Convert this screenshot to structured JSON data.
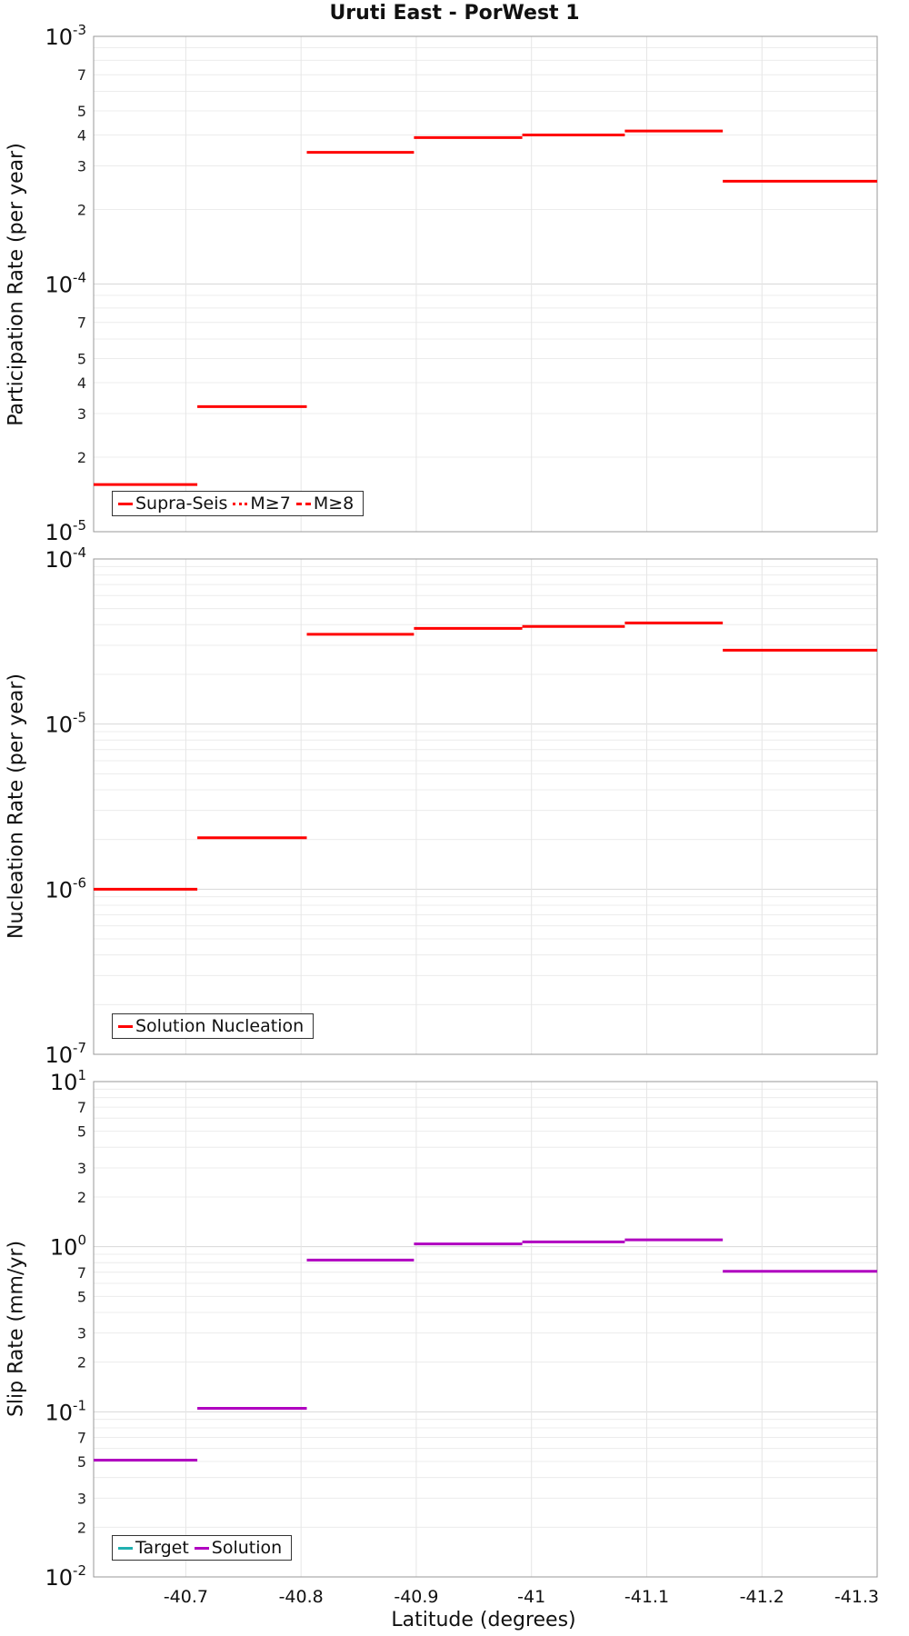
{
  "figure_title": "Uruti East - PorWest 1",
  "xlabel": "Latitude (degrees)",
  "x_ticks": [
    "-40.7",
    "-40.8",
    "-40.9",
    "-41",
    "-41.1",
    "-41.2",
    "-41.3"
  ],
  "x_tick_values": [
    -40.7,
    -40.8,
    -40.9,
    -41.0,
    -41.1,
    -41.2,
    -41.3
  ],
  "colors": {
    "red": "#ff0000",
    "magenta": "#b000c0",
    "teal": "#20b0b0"
  },
  "chart_data": [
    {
      "type": "line",
      "subtype": "step",
      "ylabel": "Participation Rate (per year)",
      "yscale": "log",
      "ylim": [
        1e-05,
        0.001
      ],
      "xlim": [
        -40.62,
        -41.3
      ],
      "decade_labels": [
        {
          "base": "10",
          "exp": "-5"
        },
        {
          "base": "10",
          "exp": "-4"
        },
        {
          "base": "10",
          "exp": "-3"
        }
      ],
      "minor_tick_labels": [
        "2",
        "3",
        "4",
        "5",
        "7"
      ],
      "legend": [
        "Supra-Seis",
        "M≥7",
        "M≥8"
      ],
      "series": [
        {
          "name": "Supra-Seis",
          "color": "#ff0000",
          "segments": [
            {
              "x0": -40.62,
              "x1": -40.71,
              "y": 1.55e-05
            },
            {
              "x0": -40.71,
              "x1": -40.805,
              "y": 3.2e-05
            },
            {
              "x0": -40.805,
              "x1": -40.898,
              "y": 0.00034
            },
            {
              "x0": -40.898,
              "x1": -40.992,
              "y": 0.00039
            },
            {
              "x0": -40.992,
              "x1": -41.081,
              "y": 0.0004
            },
            {
              "x0": -41.081,
              "x1": -41.166,
              "y": 0.000415
            },
            {
              "x0": -41.166,
              "x1": -41.3,
              "y": 0.00026
            }
          ]
        },
        {
          "name": "M≥7",
          "color": "#ff0000",
          "segments": []
        },
        {
          "name": "M≥8",
          "color": "#ff0000",
          "segments": []
        }
      ]
    },
    {
      "type": "line",
      "subtype": "step",
      "ylabel": "Nucleation Rate (per year)",
      "yscale": "log",
      "ylim": [
        1e-07,
        0.0001
      ],
      "xlim": [
        -40.62,
        -41.3
      ],
      "decade_labels": [
        {
          "base": "10",
          "exp": "-7"
        },
        {
          "base": "10",
          "exp": "-6"
        },
        {
          "base": "10",
          "exp": "-5"
        },
        {
          "base": "10",
          "exp": "-4"
        }
      ],
      "minor_tick_labels": [],
      "legend": [
        "Solution Nucleation"
      ],
      "series": [
        {
          "name": "Solution Nucleation",
          "color": "#ff0000",
          "segments": [
            {
              "x0": -40.62,
              "x1": -40.71,
              "y": 1e-06
            },
            {
              "x0": -40.71,
              "x1": -40.805,
              "y": 2.05e-06
            },
            {
              "x0": -40.805,
              "x1": -40.898,
              "y": 3.5e-05
            },
            {
              "x0": -40.898,
              "x1": -40.992,
              "y": 3.8e-05
            },
            {
              "x0": -40.992,
              "x1": -41.081,
              "y": 3.9e-05
            },
            {
              "x0": -41.081,
              "x1": -41.166,
              "y": 4.1e-05
            },
            {
              "x0": -41.166,
              "x1": -41.3,
              "y": 2.8e-05
            }
          ]
        }
      ]
    },
    {
      "type": "line",
      "subtype": "step",
      "ylabel": "Slip Rate (mm/yr)",
      "yscale": "log",
      "ylim": [
        0.01,
        10
      ],
      "xlim": [
        -40.62,
        -41.3
      ],
      "decade_labels": [
        {
          "base": "10",
          "exp": "-2"
        },
        {
          "base": "10",
          "exp": "-1"
        },
        {
          "base": "10",
          "exp": "0"
        },
        {
          "base": "10",
          "exp": "1"
        }
      ],
      "minor_tick_labels": [
        "2",
        "3",
        "5",
        "7"
      ],
      "legend": [
        "Target",
        "Solution"
      ],
      "series": [
        {
          "name": "Target",
          "color": "#20b0b0",
          "segments": []
        },
        {
          "name": "Solution",
          "color": "#b000c0",
          "segments": [
            {
              "x0": -40.62,
              "x1": -40.71,
              "y": 0.051
            },
            {
              "x0": -40.71,
              "x1": -40.805,
              "y": 0.105
            },
            {
              "x0": -40.805,
              "x1": -40.898,
              "y": 0.83
            },
            {
              "x0": -40.898,
              "x1": -40.992,
              "y": 1.04
            },
            {
              "x0": -40.992,
              "x1": -41.081,
              "y": 1.07
            },
            {
              "x0": -41.081,
              "x1": -41.166,
              "y": 1.1
            },
            {
              "x0": -41.166,
              "x1": -41.3,
              "y": 0.71
            }
          ]
        }
      ]
    }
  ]
}
